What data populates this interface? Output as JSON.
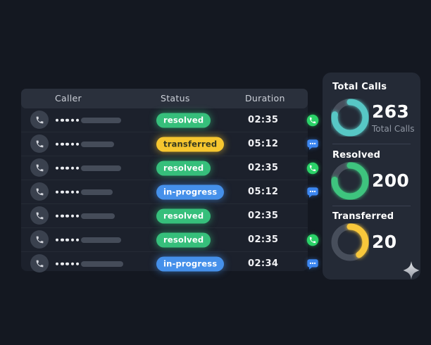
{
  "table": {
    "headers": [
      "Caller",
      "Status",
      "Duration"
    ],
    "caller_mask": {
      "dots": 5
    },
    "rows": [
      {
        "status": "resolved",
        "duration": "02:35",
        "channel": "whatsapp",
        "mask_bar_width": 57
      },
      {
        "status": "transferred",
        "duration": "05:12",
        "channel": "chat",
        "mask_bar_width": 47
      },
      {
        "status": "resolved",
        "duration": "02:35",
        "channel": "whatsapp",
        "mask_bar_width": 57
      },
      {
        "status": "in-progress",
        "duration": "05:12",
        "channel": "chat",
        "mask_bar_width": 45
      },
      {
        "status": "resolved",
        "duration": "02:35",
        "channel": "none",
        "mask_bar_width": 48
      },
      {
        "status": "resolved",
        "duration": "02:35",
        "channel": "whatsapp",
        "mask_bar_width": 57
      },
      {
        "status": "in-progress",
        "duration": "02:34",
        "channel": "chat",
        "mask_bar_width": 60
      }
    ],
    "status_colors": {
      "resolved": {
        "bg": "#36BF7B",
        "text": "#FFFFFF",
        "glow": "rgba(54,191,123,0.55)"
      },
      "transferred": {
        "bg": "#F6C62F",
        "text": "#34371E",
        "glow": "rgba(246,198,47,0.55)"
      },
      "in-progress": {
        "bg": "#4590EA",
        "text": "#FFFFFF",
        "glow": "rgba(69,144,234,0.55)"
      }
    },
    "channel_colors": {
      "whatsapp": "#2BD268",
      "chat": "#3C86F0"
    }
  },
  "sidebar": {
    "stats": [
      {
        "label": "Total Calls",
        "value": "263",
        "sublabel": "Total Calls",
        "color": "#57C7C5",
        "percent": 78
      },
      {
        "label": "Resolved",
        "value": "200",
        "sublabel": "",
        "color": "#3EC47E",
        "percent": 76
      },
      {
        "label": "Transferred",
        "value": "20",
        "sublabel": "",
        "color": "#F8C73B",
        "percent": 40
      }
    ],
    "ring_track_color": "#474E5B"
  }
}
